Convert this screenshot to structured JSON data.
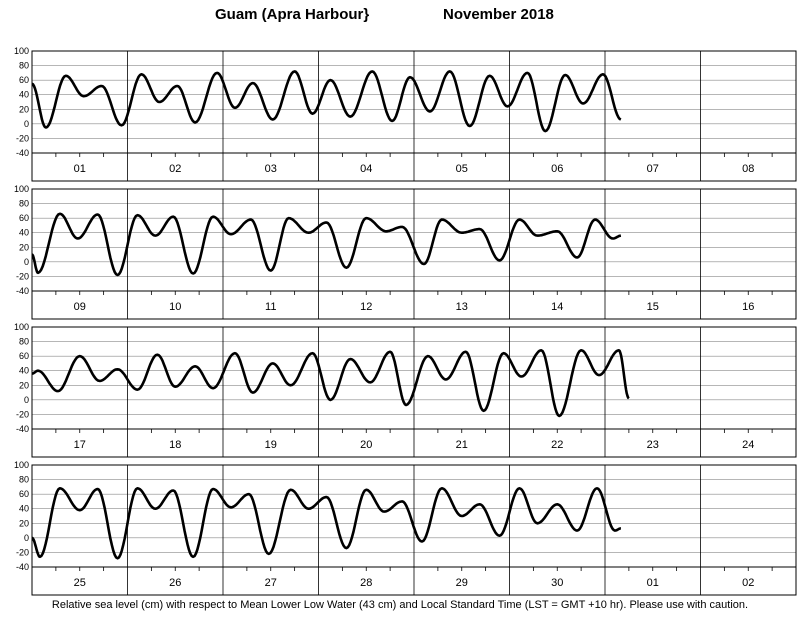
{
  "title": {
    "location": "Guam (Apra Harbour}",
    "period": "November   2018"
  },
  "footnote": "Relative sea level (cm) with respect to Mean Lower Low Water (43 cm) and Local Standard Time (LST = GMT +10 hr). Please use with caution.",
  "chart_data": {
    "type": "line",
    "title": "Guam (Apra Harbour}  November 2018",
    "ylabel": "",
    "ylim": [
      -40,
      100
    ],
    "yticks": [
      -40,
      -20,
      0,
      20,
      40,
      60,
      80,
      100
    ],
    "grid": true,
    "line_color": "#000000",
    "panels": [
      {
        "days": [
          "01",
          "02",
          "03",
          "04",
          "05",
          "06",
          "07",
          "08"
        ],
        "extrema": [
          [
            0,
            55
          ],
          [
            3.5,
            -5
          ],
          [
            8.5,
            66
          ],
          [
            13,
            38
          ],
          [
            17.5,
            52
          ],
          [
            22.5,
            -2
          ],
          [
            27.5,
            68
          ],
          [
            32,
            30
          ],
          [
            36.5,
            52
          ],
          [
            41,
            2
          ],
          [
            46.5,
            70
          ],
          [
            51,
            22
          ],
          [
            55.5,
            56
          ],
          [
            60.5,
            6
          ],
          [
            66,
            72
          ],
          [
            70.5,
            14
          ],
          [
            75,
            60
          ],
          [
            80,
            10
          ],
          [
            85.5,
            72
          ],
          [
            90.5,
            4
          ],
          [
            95,
            64
          ],
          [
            100,
            17
          ],
          [
            105,
            72
          ],
          [
            110,
            -3
          ],
          [
            115,
            66
          ],
          [
            119.5,
            24
          ],
          [
            124.5,
            70
          ],
          [
            129,
            -10
          ],
          [
            134,
            67
          ],
          [
            138.5,
            28
          ],
          [
            143.5,
            68
          ],
          [
            148,
            6
          ]
        ]
      },
      {
        "days": [
          "09",
          "10",
          "11",
          "12",
          "13",
          "14",
          "15",
          "16"
        ],
        "extrema": [
          [
            0,
            10
          ],
          [
            1.5,
            -15
          ],
          [
            7,
            66
          ],
          [
            11.5,
            32
          ],
          [
            16.5,
            65
          ],
          [
            21.5,
            -18
          ],
          [
            26.5,
            64
          ],
          [
            31,
            36
          ],
          [
            35.5,
            62
          ],
          [
            40.5,
            -16
          ],
          [
            45.5,
            62
          ],
          [
            50,
            38
          ],
          [
            55,
            58
          ],
          [
            60,
            -12
          ],
          [
            64.5,
            60
          ],
          [
            69.5,
            40
          ],
          [
            74,
            54
          ],
          [
            79,
            -8
          ],
          [
            84,
            60
          ],
          [
            89,
            42
          ],
          [
            93,
            48
          ],
          [
            98.5,
            -3
          ],
          [
            103,
            58
          ],
          [
            108,
            40
          ],
          [
            112.5,
            45
          ],
          [
            117.5,
            2
          ],
          [
            122.5,
            58
          ],
          [
            127,
            36
          ],
          [
            132,
            42
          ],
          [
            137,
            6
          ],
          [
            141.5,
            58
          ],
          [
            146,
            32
          ],
          [
            148,
            36
          ]
        ]
      },
      {
        "days": [
          "17",
          "18",
          "19",
          "20",
          "21",
          "22",
          "23",
          "24"
        ],
        "extrema": [
          [
            0,
            36
          ],
          [
            1.5,
            40
          ],
          [
            6.5,
            12
          ],
          [
            12,
            60
          ],
          [
            17,
            26
          ],
          [
            21.5,
            42
          ],
          [
            26.5,
            14
          ],
          [
            31.5,
            62
          ],
          [
            36,
            18
          ],
          [
            41,
            46
          ],
          [
            45.5,
            16
          ],
          [
            51,
            64
          ],
          [
            55.5,
            10
          ],
          [
            60.5,
            50
          ],
          [
            65,
            20
          ],
          [
            70.5,
            64
          ],
          [
            75,
            0
          ],
          [
            80,
            56
          ],
          [
            85,
            24
          ],
          [
            90,
            66
          ],
          [
            94,
            -7
          ],
          [
            99.5,
            60
          ],
          [
            104,
            28
          ],
          [
            109,
            66
          ],
          [
            113.5,
            -15
          ],
          [
            118.5,
            64
          ],
          [
            123,
            32
          ],
          [
            128,
            68
          ],
          [
            132.5,
            -22
          ],
          [
            138,
            68
          ],
          [
            142.5,
            34
          ],
          [
            147.5,
            68
          ],
          [
            150,
            2
          ]
        ]
      },
      {
        "days": [
          "25",
          "26",
          "27",
          "28",
          "29",
          "30",
          "01",
          "02"
        ],
        "extrema": [
          [
            0,
            0
          ],
          [
            2,
            -26
          ],
          [
            7,
            68
          ],
          [
            12,
            38
          ],
          [
            16.5,
            67
          ],
          [
            21.5,
            -28
          ],
          [
            26.5,
            68
          ],
          [
            31,
            40
          ],
          [
            35.5,
            65
          ],
          [
            40.5,
            -26
          ],
          [
            45.5,
            67
          ],
          [
            50,
            42
          ],
          [
            54.5,
            60
          ],
          [
            59.5,
            -22
          ],
          [
            65,
            66
          ],
          [
            69.5,
            40
          ],
          [
            74,
            56
          ],
          [
            79,
            -14
          ],
          [
            84,
            66
          ],
          [
            88.5,
            36
          ],
          [
            93,
            50
          ],
          [
            98,
            -5
          ],
          [
            103,
            68
          ],
          [
            108,
            30
          ],
          [
            112.5,
            46
          ],
          [
            117.5,
            3
          ],
          [
            122.5,
            68
          ],
          [
            127,
            20
          ],
          [
            132,
            46
          ],
          [
            137,
            10
          ],
          [
            142,
            68
          ],
          [
            146.5,
            10
          ],
          [
            148,
            13
          ]
        ]
      }
    ]
  }
}
